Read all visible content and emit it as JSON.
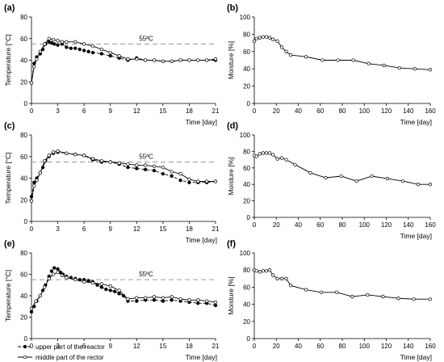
{
  "chart_data": [
    {
      "panel": "(a)",
      "type": "line",
      "ylabel": "Temperature [°C]",
      "xlabel": "Time [day]",
      "xlim": [
        0,
        21
      ],
      "ylim": [
        0,
        80
      ],
      "xticks": [
        "0",
        "3",
        "6",
        "9",
        "12",
        "15",
        "18",
        "21"
      ],
      "yticks": [
        "0",
        "20",
        "40",
        "60",
        "80"
      ],
      "reference": {
        "y": 55,
        "label": "55ºC"
      },
      "series": [
        {
          "name": "upper part of the reactor",
          "style": "dashed",
          "marker": "filled",
          "points": [
            [
              0,
              19
            ],
            [
              0.3,
              37
            ],
            [
              0.6,
              43
            ],
            [
              1,
              46
            ],
            [
              1.3,
              50
            ],
            [
              1.6,
              55
            ],
            [
              2,
              57
            ],
            [
              2.3,
              56
            ],
            [
              2.6,
              55
            ],
            [
              3,
              54
            ],
            [
              3.5,
              55
            ],
            [
              4,
              52
            ],
            [
              4.5,
              51
            ],
            [
              5,
              51
            ],
            [
              5.5,
              50
            ],
            [
              6,
              49
            ],
            [
              6.5,
              48
            ],
            [
              7,
              47
            ],
            [
              8,
              46
            ],
            [
              9,
              44
            ],
            [
              10,
              42
            ],
            [
              11,
              40
            ],
            [
              12,
              42
            ],
            [
              13,
              40
            ],
            [
              14,
              40
            ],
            [
              15,
              39
            ],
            [
              16,
              39
            ],
            [
              17,
              40
            ],
            [
              18,
              40
            ],
            [
              19,
              40
            ],
            [
              20,
              40
            ],
            [
              21,
              40
            ]
          ]
        },
        {
          "name": "middle part of the rector",
          "style": "solid",
          "marker": "open",
          "points": [
            [
              0,
              19
            ],
            [
              0.3,
              34
            ],
            [
              0.6,
              41
            ],
            [
              1,
              48
            ],
            [
              1.5,
              55
            ],
            [
              2,
              60
            ],
            [
              2.5,
              59
            ],
            [
              3,
              58
            ],
            [
              3.5,
              57
            ],
            [
              4,
              57
            ],
            [
              5,
              57
            ],
            [
              6,
              55
            ],
            [
              7,
              53
            ],
            [
              8,
              50
            ],
            [
              9,
              47
            ],
            [
              10,
              44
            ],
            [
              11,
              41
            ],
            [
              12,
              41
            ],
            [
              13,
              40
            ],
            [
              14,
              40
            ],
            [
              15,
              39
            ],
            [
              16,
              39
            ],
            [
              17,
              40
            ],
            [
              18,
              40
            ],
            [
              19,
              40
            ],
            [
              20,
              40
            ],
            [
              21,
              41
            ]
          ]
        }
      ]
    },
    {
      "panel": "(b)",
      "type": "line",
      "ylabel": "Moisture [%]",
      "xlabel": "Time [day]",
      "xlim": [
        0,
        160
      ],
      "ylim": [
        0,
        100
      ],
      "xticks": [
        "0",
        "20",
        "40",
        "60",
        "80",
        "100",
        "120",
        "140",
        "160"
      ],
      "yticks": [
        "0",
        "20",
        "40",
        "60",
        "80",
        "100"
      ],
      "series": [
        {
          "style": "solid",
          "marker": "open",
          "points": [
            [
              0,
              72
            ],
            [
              2,
              75
            ],
            [
              5,
              76
            ],
            [
              8,
              77
            ],
            [
              11,
              77
            ],
            [
              14,
              76
            ],
            [
              17,
              74
            ],
            [
              21,
              72
            ],
            [
              25,
              65
            ],
            [
              29,
              60
            ],
            [
              33,
              56
            ],
            [
              47,
              54
            ],
            [
              62,
              50
            ],
            [
              76,
              50
            ],
            [
              90,
              50
            ],
            [
              104,
              46
            ],
            [
              118,
              44
            ],
            [
              132,
              41
            ],
            [
              146,
              40
            ],
            [
              160,
              39
            ]
          ]
        }
      ]
    },
    {
      "panel": "(c)",
      "type": "line",
      "ylabel": "Temperature [°C]",
      "xlabel": "Time [day]",
      "xlim": [
        0,
        21
      ],
      "ylim": [
        0,
        80
      ],
      "xticks": [
        "0",
        "3",
        "6",
        "9",
        "12",
        "15",
        "18",
        "21"
      ],
      "yticks": [
        "0",
        "20",
        "40",
        "60",
        "80"
      ],
      "reference": {
        "y": 55,
        "label": "55ºC"
      },
      "series": [
        {
          "name": "upper part of the reactor",
          "style": "dashed",
          "marker": "filled",
          "points": [
            [
              0,
              23
            ],
            [
              0.3,
              36
            ],
            [
              0.6,
              40
            ],
            [
              1,
              45
            ],
            [
              1.3,
              50
            ],
            [
              1.6,
              56
            ],
            [
              2,
              60
            ],
            [
              2.5,
              63
            ],
            [
              3,
              64
            ],
            [
              4,
              63
            ],
            [
              5,
              62
            ],
            [
              6,
              61
            ],
            [
              7,
              57
            ],
            [
              8,
              55
            ],
            [
              9,
              55
            ],
            [
              10,
              53
            ],
            [
              11,
              50
            ],
            [
              12,
              49
            ],
            [
              13,
              48
            ],
            [
              14,
              47
            ],
            [
              15,
              44
            ],
            [
              16,
              42
            ],
            [
              17,
              38
            ],
            [
              18,
              36
            ],
            [
              19,
              36
            ],
            [
              20,
              36
            ],
            [
              21,
              37
            ]
          ]
        },
        {
          "name": "middle part of the rector",
          "style": "solid",
          "marker": "open",
          "points": [
            [
              0,
              19
            ],
            [
              0.3,
              33
            ],
            [
              0.6,
              38
            ],
            [
              1,
              45
            ],
            [
              1.5,
              56
            ],
            [
              2,
              61
            ],
            [
              2.5,
              64
            ],
            [
              3,
              65
            ],
            [
              4,
              63
            ],
            [
              5,
              62
            ],
            [
              6,
              61
            ],
            [
              7,
              58
            ],
            [
              8,
              56
            ],
            [
              9,
              55
            ],
            [
              10,
              54
            ],
            [
              11,
              53
            ],
            [
              12,
              52
            ],
            [
              13,
              52
            ],
            [
              14,
              51
            ],
            [
              15,
              50
            ],
            [
              16,
              46
            ],
            [
              17,
              44
            ],
            [
              18,
              39
            ],
            [
              19,
              37
            ],
            [
              20,
              37
            ],
            [
              21,
              37
            ]
          ]
        }
      ]
    },
    {
      "panel": "(d)",
      "type": "line",
      "ylabel": "Moisture [%]",
      "xlabel": "Time [day]",
      "xlim": [
        0,
        160
      ],
      "ylim": [
        0,
        100
      ],
      "xticks": [
        "0",
        "20",
        "40",
        "60",
        "80",
        "100",
        "120",
        "140",
        "160"
      ],
      "yticks": [
        "0",
        "20",
        "40",
        "60",
        "80",
        "100"
      ],
      "series": [
        {
          "style": "solid",
          "marker": "open",
          "points": [
            [
              0,
              75
            ],
            [
              2,
              74
            ],
            [
              5,
              77
            ],
            [
              8,
              78
            ],
            [
              11,
              78
            ],
            [
              14,
              78
            ],
            [
              17,
              76
            ],
            [
              21,
              71
            ],
            [
              25,
              72
            ],
            [
              29,
              70
            ],
            [
              37,
              64
            ],
            [
              51,
              54
            ],
            [
              65,
              48
            ],
            [
              79,
              50
            ],
            [
              93,
              44
            ],
            [
              107,
              50
            ],
            [
              121,
              47
            ],
            [
              135,
              44
            ],
            [
              149,
              40
            ],
            [
              160,
              40
            ]
          ]
        }
      ]
    },
    {
      "panel": "(e)",
      "type": "line",
      "ylabel": "Temperature [°C]",
      "xlabel": "Time [day]",
      "xlim": [
        0,
        21
      ],
      "ylim": [
        0,
        80
      ],
      "xticks": [
        "0",
        "3",
        "6",
        "9",
        "12",
        "15",
        "18",
        "21"
      ],
      "yticks": [
        "0",
        "20",
        "40",
        "60",
        "80"
      ],
      "reference": {
        "y": 55,
        "label": "55ºC"
      },
      "series": [
        {
          "name": "upper part of the reactor",
          "style": "dashed",
          "marker": "filled",
          "points": [
            [
              0,
              25
            ],
            [
              0.3,
              30
            ],
            [
              0.6,
              35
            ],
            [
              1,
              40
            ],
            [
              1.3,
              45
            ],
            [
              1.6,
              50
            ],
            [
              2,
              58
            ],
            [
              2.3,
              63
            ],
            [
              2.6,
              66
            ],
            [
              3,
              65
            ],
            [
              3.3,
              62
            ],
            [
              3.6,
              60
            ],
            [
              4,
              58
            ],
            [
              4.5,
              57
            ],
            [
              5,
              56
            ],
            [
              5.5,
              55
            ],
            [
              6,
              55
            ],
            [
              6.5,
              54
            ],
            [
              7,
              53
            ],
            [
              7.5,
              50
            ],
            [
              8,
              48
            ],
            [
              8.5,
              46
            ],
            [
              9,
              45
            ],
            [
              9.5,
              44
            ],
            [
              10,
              42
            ],
            [
              10.5,
              40
            ],
            [
              11,
              35
            ],
            [
              12,
              35
            ],
            [
              13,
              36
            ],
            [
              14,
              36
            ],
            [
              15,
              35
            ],
            [
              16,
              36
            ],
            [
              17,
              35
            ],
            [
              18,
              34
            ],
            [
              19,
              33
            ],
            [
              20,
              33
            ],
            [
              21,
              31
            ]
          ]
        },
        {
          "name": "middle part of the rector",
          "style": "solid",
          "marker": "open",
          "points": [
            [
              0,
              28
            ],
            [
              0.5,
              35
            ],
            [
              1,
              40
            ],
            [
              1.5,
              48
            ],
            [
              2,
              56
            ],
            [
              2.5,
              60
            ],
            [
              3,
              62
            ],
            [
              3.5,
              59
            ],
            [
              4,
              57
            ],
            [
              5,
              55
            ],
            [
              6,
              53
            ],
            [
              7,
              52
            ],
            [
              8,
              51
            ],
            [
              9,
              49
            ],
            [
              10,
              45
            ],
            [
              11,
              37
            ],
            [
              12,
              38
            ],
            [
              13,
              38
            ],
            [
              14,
              39
            ],
            [
              15,
              38
            ],
            [
              16,
              39
            ],
            [
              17,
              37
            ],
            [
              18,
              36
            ],
            [
              19,
              36
            ],
            [
              20,
              35
            ],
            [
              21,
              34
            ]
          ]
        }
      ]
    },
    {
      "panel": "(f)",
      "type": "line",
      "ylabel": "Moisture [%]",
      "xlabel": "Time [day]",
      "xlim": [
        0,
        160
      ],
      "ylim": [
        0,
        100
      ],
      "xticks": [
        "0",
        "20",
        "40",
        "60",
        "80",
        "100",
        "120",
        "140",
        "160"
      ],
      "yticks": [
        "0",
        "20",
        "40",
        "60",
        "80",
        "100"
      ],
      "series": [
        {
          "style": "solid",
          "marker": "open",
          "points": [
            [
              0,
              80
            ],
            [
              2,
              79
            ],
            [
              5,
              78
            ],
            [
              8,
              79
            ],
            [
              11,
              79
            ],
            [
              14,
              80
            ],
            [
              17,
              74
            ],
            [
              21,
              70
            ],
            [
              25,
              70
            ],
            [
              29,
              70
            ],
            [
              33,
              62
            ],
            [
              47,
              57
            ],
            [
              61,
              54
            ],
            [
              75,
              54
            ],
            [
              89,
              49
            ],
            [
              103,
              51
            ],
            [
              117,
              49
            ],
            [
              131,
              47
            ],
            [
              145,
              46
            ],
            [
              160,
              46
            ]
          ]
        }
      ]
    }
  ],
  "legend": [
    {
      "label": "upper part of the reactor",
      "style": "dashed",
      "marker": "filled"
    },
    {
      "label": "middle part of the rector",
      "style": "solid",
      "marker": "open"
    }
  ]
}
